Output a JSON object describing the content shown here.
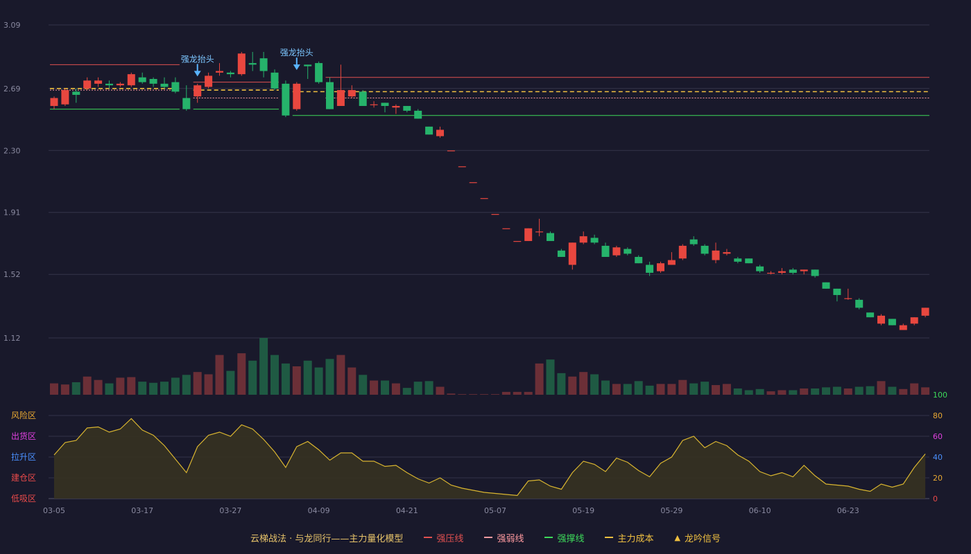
{
  "colors": {
    "background": "#19192b",
    "up": "#e8473f",
    "down": "#26b36b",
    "grid": "#34344a",
    "pressure": "#e05050",
    "weak": "#ff9aa0",
    "support": "#3dd95a",
    "cost": "#f0c040",
    "signal": "#5ab4ff",
    "indicator_line": "#d9b530",
    "indicator_fill": "#353022"
  },
  "chart_data": {
    "type": "candlestick",
    "price_axis": {
      "ticks": [
        "3.09",
        "2.69",
        "2.30",
        "1.91",
        "1.52",
        "1.12"
      ],
      "range": [
        1.12,
        3.09
      ]
    },
    "x_labels": [
      "03-05",
      "03-17",
      "03-27",
      "04-09",
      "04-21",
      "05-07",
      "05-19",
      "05-29",
      "06-10",
      "06-23"
    ],
    "x_label_index": [
      0,
      8,
      16,
      24,
      32,
      40,
      48,
      56,
      64,
      72
    ],
    "candles": [
      [
        2.58,
        2.63,
        2.64,
        2.56
      ],
      [
        2.59,
        2.68,
        2.69,
        2.58
      ],
      [
        2.67,
        2.65,
        2.69,
        2.6
      ],
      [
        2.69,
        2.74,
        2.76,
        2.68
      ],
      [
        2.72,
        2.74,
        2.76,
        2.7
      ],
      [
        2.72,
        2.71,
        2.74,
        2.69
      ],
      [
        2.71,
        2.72,
        2.73,
        2.7
      ],
      [
        2.71,
        2.78,
        2.79,
        2.7
      ],
      [
        2.76,
        2.73,
        2.79,
        2.72
      ],
      [
        2.75,
        2.72,
        2.76,
        2.7
      ],
      [
        2.72,
        2.7,
        2.76,
        2.69
      ],
      [
        2.73,
        2.67,
        2.76,
        2.66
      ],
      [
        2.63,
        2.56,
        2.71,
        2.55
      ],
      [
        2.64,
        2.71,
        2.72,
        2.6
      ],
      [
        2.7,
        2.77,
        2.79,
        2.69
      ],
      [
        2.79,
        2.8,
        2.85,
        2.77
      ],
      [
        2.79,
        2.78,
        2.8,
        2.76
      ],
      [
        2.78,
        2.91,
        2.92,
        2.77
      ],
      [
        2.85,
        2.84,
        2.92,
        2.8
      ],
      [
        2.88,
        2.8,
        2.92,
        2.76
      ],
      [
        2.79,
        2.69,
        2.81,
        2.68
      ],
      [
        2.72,
        2.52,
        2.74,
        2.51
      ],
      [
        2.56,
        2.72,
        2.73,
        2.55
      ],
      [
        2.84,
        2.83,
        2.84,
        2.75
      ],
      [
        2.85,
        2.73,
        2.86,
        2.72
      ],
      [
        2.73,
        2.56,
        2.76,
        2.56
      ],
      [
        2.58,
        2.68,
        2.84,
        2.58
      ],
      [
        2.64,
        2.68,
        2.71,
        2.63
      ],
      [
        2.67,
        2.58,
        2.68,
        2.58
      ],
      [
        2.59,
        2.59,
        2.61,
        2.57
      ],
      [
        2.6,
        2.58,
        2.6,
        2.54
      ],
      [
        2.57,
        2.58,
        2.59,
        2.53
      ],
      [
        2.58,
        2.55,
        2.58,
        2.54
      ],
      [
        2.55,
        2.5,
        2.56,
        2.5
      ],
      [
        2.45,
        2.4,
        2.45,
        2.4
      ],
      [
        2.39,
        2.43,
        2.45,
        2.38
      ],
      [
        2.3,
        2.3,
        2.3,
        2.3
      ],
      [
        2.2,
        2.2,
        2.2,
        2.2
      ],
      [
        2.1,
        2.1,
        2.1,
        2.1
      ],
      [
        2.0,
        2.0,
        2.0,
        2.0
      ],
      [
        1.9,
        1.9,
        1.9,
        1.9
      ],
      [
        1.81,
        1.81,
        1.81,
        1.81
      ],
      [
        1.73,
        1.73,
        1.73,
        1.73
      ],
      [
        1.73,
        1.81,
        1.81,
        1.73
      ],
      [
        1.79,
        1.79,
        1.87,
        1.76
      ],
      [
        1.78,
        1.73,
        1.79,
        1.73
      ],
      [
        1.67,
        1.63,
        1.68,
        1.63
      ],
      [
        1.58,
        1.72,
        1.72,
        1.55
      ],
      [
        1.72,
        1.76,
        1.79,
        1.71
      ],
      [
        1.75,
        1.72,
        1.77,
        1.71
      ],
      [
        1.7,
        1.63,
        1.72,
        1.63
      ],
      [
        1.64,
        1.69,
        1.7,
        1.63
      ],
      [
        1.68,
        1.65,
        1.69,
        1.64
      ],
      [
        1.63,
        1.59,
        1.64,
        1.59
      ],
      [
        1.58,
        1.53,
        1.6,
        1.51
      ],
      [
        1.54,
        1.59,
        1.6,
        1.53
      ],
      [
        1.58,
        1.61,
        1.66,
        1.58
      ],
      [
        1.62,
        1.7,
        1.71,
        1.61
      ],
      [
        1.74,
        1.71,
        1.76,
        1.7
      ],
      [
        1.7,
        1.65,
        1.71,
        1.64
      ],
      [
        1.61,
        1.67,
        1.72,
        1.59
      ],
      [
        1.65,
        1.66,
        1.68,
        1.64
      ],
      [
        1.62,
        1.6,
        1.63,
        1.59
      ],
      [
        1.62,
        1.59,
        1.62,
        1.59
      ],
      [
        1.57,
        1.54,
        1.58,
        1.53
      ],
      [
        1.53,
        1.53,
        1.54,
        1.52
      ],
      [
        1.53,
        1.54,
        1.56,
        1.52
      ],
      [
        1.55,
        1.53,
        1.56,
        1.52
      ],
      [
        1.54,
        1.55,
        1.55,
        1.52
      ],
      [
        1.55,
        1.51,
        1.55,
        1.5
      ],
      [
        1.47,
        1.43,
        1.47,
        1.43
      ],
      [
        1.43,
        1.39,
        1.43,
        1.35
      ],
      [
        1.37,
        1.37,
        1.43,
        1.36
      ],
      [
        1.36,
        1.31,
        1.37,
        1.3
      ],
      [
        1.28,
        1.25,
        1.28,
        1.25
      ],
      [
        1.21,
        1.26,
        1.27,
        1.2
      ],
      [
        1.24,
        1.2,
        1.24,
        1.2
      ],
      [
        1.17,
        1.2,
        1.21,
        1.17
      ],
      [
        1.21,
        1.25,
        1.25,
        1.2
      ],
      [
        1.26,
        1.31,
        1.31,
        1.25
      ]
    ],
    "volume_max": 100,
    "volume": [
      20,
      18,
      22,
      32,
      26,
      20,
      30,
      31,
      23,
      21,
      23,
      30,
      35,
      40,
      36,
      70,
      42,
      73,
      60,
      100,
      70,
      55,
      50,
      60,
      48,
      63,
      70,
      48,
      35,
      25,
      25,
      20,
      12,
      23,
      24,
      14,
      2,
      1,
      1,
      1,
      1,
      5,
      5,
      5,
      55,
      62,
      38,
      32,
      40,
      36,
      25,
      19,
      19,
      24,
      16,
      19,
      19,
      26,
      20,
      23,
      17,
      19,
      11,
      8,
      10,
      6,
      8,
      8,
      11,
      11,
      13,
      14,
      11,
      14,
      15,
      24,
      14,
      10,
      20,
      13
    ],
    "lines": {
      "pressure": [
        {
          "from": 0,
          "to": 11,
          "value": 2.84
        },
        {
          "from": 13,
          "to": 20,
          "value": 2.73
        },
        {
          "from": 25,
          "to": 79,
          "value": 2.76
        }
      ],
      "weak": [
        {
          "from": 0,
          "to": 11,
          "value": 2.68
        },
        {
          "from": 13,
          "to": 20,
          "value": 2.63
        },
        {
          "from": 25,
          "to": 79,
          "value": 2.63
        }
      ],
      "support": [
        {
          "from": 0,
          "to": 11,
          "value": 2.56
        },
        {
          "from": 13,
          "to": 20,
          "value": 2.56
        },
        {
          "from": 22,
          "to": 79,
          "value": 2.52
        }
      ],
      "cost": [
        {
          "from": 0,
          "to": 11,
          "value": 2.69
        },
        {
          "from": 13,
          "to": 20,
          "value": 2.68
        },
        {
          "from": 22,
          "to": 79,
          "value": 2.67
        }
      ]
    },
    "signals": [
      {
        "index": 13,
        "price": 2.84,
        "label": "强龙抬头"
      },
      {
        "index": 22,
        "price": 2.88,
        "label": "强龙抬头"
      }
    ],
    "indicator": {
      "range": [
        0,
        100
      ],
      "ticks": [
        "100",
        "80",
        "60",
        "40",
        "20",
        "0"
      ],
      "tick_values": [
        100,
        80,
        60,
        40,
        20,
        0
      ],
      "tick_colors": [
        "#3dd95a",
        "#e8a832",
        "#e040e0",
        "#4a90ff",
        "#e8a832",
        "#e84a4a"
      ],
      "zones": [
        {
          "label": "风险区",
          "value": 80,
          "color": "#e8a832"
        },
        {
          "label": "出货区",
          "value": 60,
          "color": "#e040e0"
        },
        {
          "label": "拉升区",
          "value": 40,
          "color": "#4a90ff"
        },
        {
          "label": "建仓区",
          "value": 20,
          "color": "#e84a4a"
        },
        {
          "label": "低吸区",
          "value": 0,
          "color": "#e84a4a"
        }
      ],
      "values": [
        42,
        54,
        56,
        68,
        69,
        64,
        67,
        77,
        66,
        61,
        51,
        38,
        25,
        50,
        61,
        64,
        60,
        71,
        67,
        57,
        45,
        30,
        50,
        55,
        47,
        37,
        44,
        44,
        36,
        36,
        31,
        32,
        25,
        19,
        15,
        20,
        13,
        10,
        8,
        6,
        5,
        4,
        3,
        17,
        18,
        12,
        9,
        25,
        36,
        33,
        26,
        39,
        35,
        27,
        21,
        34,
        40,
        56,
        60,
        49,
        55,
        51,
        42,
        36,
        26,
        22,
        25,
        21,
        32,
        22,
        14,
        13,
        12,
        9,
        7,
        14,
        11,
        14,
        30,
        43
      ]
    }
  },
  "legend": {
    "model_label": "云梯战法 · 与龙同行——主力量化模型",
    "items": [
      {
        "label": "强压线",
        "color": "#e05050",
        "style": "solid",
        "marker": "line"
      },
      {
        "label": "强弱线",
        "color": "#ff9aa0",
        "style": "dashed",
        "marker": "line"
      },
      {
        "label": "强撑线",
        "color": "#3dd95a",
        "style": "solid",
        "marker": "line"
      },
      {
        "label": "主力成本",
        "color": "#f0c040",
        "style": "dashed",
        "marker": "line"
      },
      {
        "label": "龙吟信号",
        "color": "#f0c040",
        "style": "solid",
        "marker": "triangle"
      }
    ]
  }
}
